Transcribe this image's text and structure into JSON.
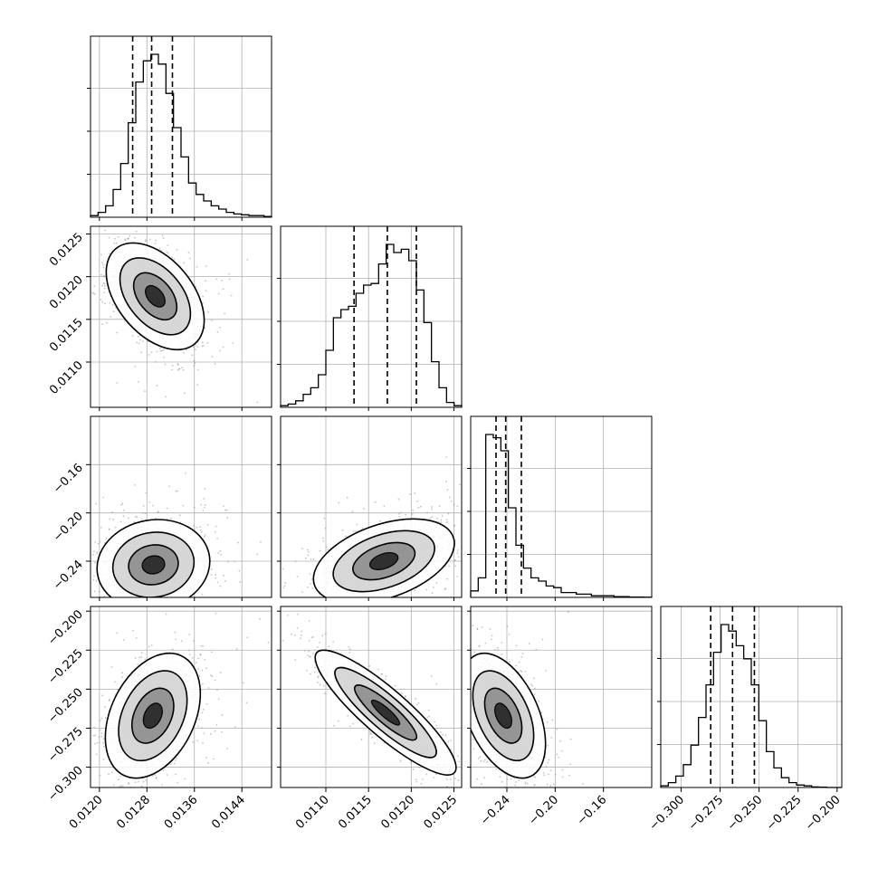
{
  "chart_data": {
    "type": "corner",
    "n_params": 4,
    "grid": true,
    "quantiles": [
      0.16,
      0.5,
      0.84
    ],
    "ranges": [
      [
        0.01185,
        0.0149
      ],
      [
        0.01047,
        0.01259
      ],
      [
        -0.27,
        -0.12
      ],
      [
        -0.313,
        -0.197
      ]
    ],
    "ticks": [
      {
        "values": [
          0.012,
          0.0128,
          0.0136,
          0.0144
        ],
        "labels": [
          "0.0120",
          "0.0128",
          "0.0136",
          "0.0144"
        ]
      },
      {
        "values": [
          0.011,
          0.0115,
          0.012,
          0.0125
        ],
        "labels": [
          "0.0110",
          "0.0115",
          "0.0120",
          "0.0125"
        ]
      },
      {
        "values": [
          -0.24,
          -0.2,
          -0.16
        ],
        "labels": [
          "−0.24",
          "−0.20",
          "−0.16"
        ]
      },
      {
        "values": [
          -0.3,
          -0.275,
          -0.25,
          -0.225,
          -0.2
        ],
        "labels": [
          "−0.300",
          "−0.275",
          "−0.250",
          "−0.225",
          "−0.200"
        ]
      }
    ],
    "quantile_values": [
      [
        0.01256,
        0.01288,
        0.01323
      ],
      [
        0.01133,
        0.01172,
        0.01206
      ],
      [
        -0.249,
        -0.241,
        -0.228
      ],
      [
        -0.281,
        -0.267,
        -0.253
      ]
    ],
    "histograms": [
      [
        1,
        3,
        7,
        17,
        33,
        58,
        83,
        96,
        100,
        94,
        76,
        55,
        37,
        21,
        14,
        10,
        7,
        5,
        3,
        2,
        1.5,
        1,
        1,
        0.5
      ],
      [
        1,
        2,
        4,
        8,
        12,
        20,
        35,
        55,
        60,
        62,
        70,
        75,
        76,
        88,
        100,
        95,
        97,
        90,
        72,
        52,
        28,
        12,
        3,
        1
      ],
      [
        4,
        12,
        100,
        98,
        90,
        55,
        32,
        18,
        12,
        10,
        7,
        6,
        3,
        3,
        2,
        2,
        1,
        1,
        1,
        0.5,
        0.5,
        0.2,
        0.2,
        0.1
      ],
      [
        1,
        3,
        7,
        14,
        26,
        43,
        63,
        83,
        100,
        96,
        87,
        79,
        63,
        41,
        22,
        12,
        6,
        3,
        1.5,
        1,
        0.3,
        0.2,
        0,
        0
      ]
    ],
    "pairs": [
      {
        "i": 1,
        "j": 0,
        "center": [
          0.01294,
          0.01177
        ],
        "sigma": [
          0.00033,
          0.00025
        ],
        "corr": -0.45
      },
      {
        "i": 2,
        "j": 0,
        "center": [
          0.01291,
          -0.243
        ],
        "sigma": [
          0.00038,
          0.015
        ],
        "corr": 0.08
      },
      {
        "i": 2,
        "j": 1,
        "center": [
          0.01168,
          -0.24
        ],
        "sigma": [
          0.00033,
          0.014
        ],
        "corr": 0.42
      },
      {
        "i": 3,
        "j": 0,
        "center": [
          0.0129,
          -0.267
        ],
        "sigma": [
          0.00032,
          0.016
        ],
        "corr": 0.35
      },
      {
        "i": 3,
        "j": 1,
        "center": [
          0.0117,
          -0.265
        ],
        "sigma": [
          0.00033,
          0.016
        ],
        "corr": -0.88
      },
      {
        "i": 3,
        "j": 2,
        "center": [
          -0.243,
          -0.267
        ],
        "sigma": [
          0.014,
          0.016
        ],
        "corr": -0.45
      }
    ]
  }
}
